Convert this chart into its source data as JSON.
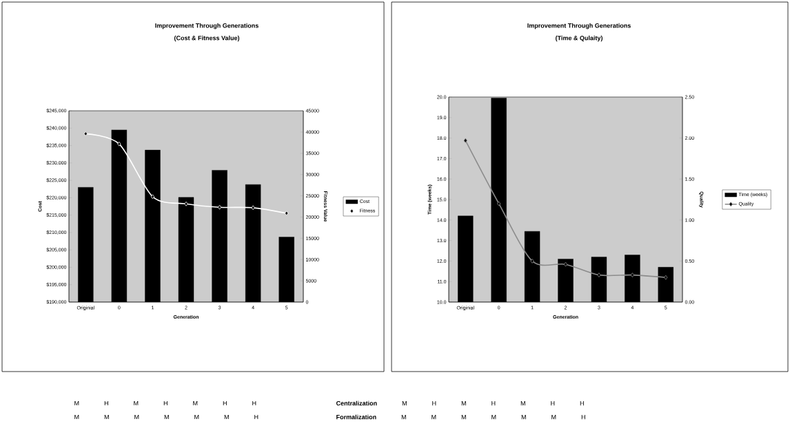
{
  "chart_data": [
    {
      "type": "bar",
      "title": "Improvement Through Generations",
      "subtitle": "(Cost & Fitness Value)",
      "xlabel": "Generation",
      "ylabel": "Cost",
      "y2label": "Fitness Value",
      "categories": [
        "Originial",
        "0",
        "1",
        "2",
        "3",
        "4",
        "5"
      ],
      "series": [
        {
          "name": "Cost",
          "color": "#000000",
          "values": [
            223000,
            239500,
            233700,
            220100,
            227900,
            223800,
            208700
          ]
        },
        {
          "name": "Fitness",
          "type": "line",
          "axis": "y2",
          "color": "#ffffff",
          "marker": "diamond",
          "values": [
            39600,
            37200,
            24800,
            23100,
            22300,
            22200,
            20900
          ]
        }
      ],
      "ylim": [
        190000,
        245000
      ],
      "yticks": [
        {
          "value": 190000,
          "label": "$190,000"
        },
        {
          "value": 195000,
          "label": "$195,000"
        },
        {
          "value": 200000,
          "label": "$200,000"
        },
        {
          "value": 205000,
          "label": "$205,000"
        },
        {
          "value": 210000,
          "label": "$210,000"
        },
        {
          "value": 215000,
          "label": "$215,000"
        },
        {
          "value": 220000,
          "label": "$220,000"
        },
        {
          "value": 225000,
          "label": "$225,000"
        },
        {
          "value": 230000,
          "label": "$230,000"
        },
        {
          "value": 235000,
          "label": "$235,000"
        },
        {
          "value": 240000,
          "label": "$240,000"
        },
        {
          "value": 245000,
          "label": "$245,000"
        }
      ],
      "y2lim": [
        0,
        45000
      ],
      "y2ticks": [
        0,
        5000,
        10000,
        15000,
        20000,
        25000,
        30000,
        35000,
        40000,
        45000
      ],
      "legend": "right",
      "annotations": [
        "M H M H M H H",
        "M M M M M M H"
      ]
    },
    {
      "type": "bar",
      "title": "Improvement Through Generations",
      "subtitle": "(Time & Qulaity)",
      "xlabel": "Generation",
      "ylabel": "Time (weeks)",
      "y2label": "Quality",
      "categories": [
        "Originial",
        "0",
        "1",
        "2",
        "3",
        "4",
        "5"
      ],
      "series": [
        {
          "name": "Time (weeks)",
          "color": "#000000",
          "values": [
            14.2,
            19.95,
            13.45,
            12.1,
            12.2,
            12.3,
            11.7
          ]
        },
        {
          "name": "Quality",
          "type": "line",
          "axis": "y2",
          "color": "#8c8c8c",
          "marker": "diamond",
          "values": [
            1.97,
            1.2,
            0.5,
            0.46,
            0.33,
            0.33,
            0.3
          ]
        }
      ],
      "ylim": [
        10,
        20
      ],
      "yticks": [
        {
          "value": 10,
          "label": "10.0"
        },
        {
          "value": 11,
          "label": "11.0"
        },
        {
          "value": 12,
          "label": "12.0"
        },
        {
          "value": 13,
          "label": "13.0"
        },
        {
          "value": 14,
          "label": "14.0"
        },
        {
          "value": 15,
          "label": "15.0"
        },
        {
          "value": 16,
          "label": "16.0"
        },
        {
          "value": 17,
          "label": "17.0"
        },
        {
          "value": 18,
          "label": "18.0"
        },
        {
          "value": 19,
          "label": "19.0"
        },
        {
          "value": 20,
          "label": "20.0"
        }
      ],
      "y2lim": [
        0,
        2.5
      ],
      "y2ticks": [
        {
          "value": 0,
          "label": "0.00"
        },
        {
          "value": 0.5,
          "label": "0.50"
        },
        {
          "value": 1,
          "label": "1.00"
        },
        {
          "value": 1.5,
          "label": "1.50"
        },
        {
          "value": 2,
          "label": "2.00"
        },
        {
          "value": 2.5,
          "label": "2.50"
        }
      ],
      "legend": "right",
      "annotations": [
        "**Centralization** M H M H M H H",
        "**Formalization** M M M M M M H"
      ]
    }
  ]
}
